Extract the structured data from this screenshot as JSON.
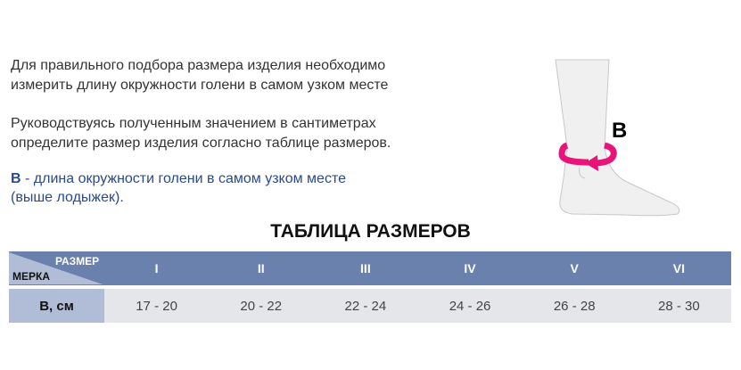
{
  "intro": {
    "line1": "Для правильного подбора размера изделия необходимо",
    "line2": "измерить длину окружности голени в самом узком месте",
    "line3": "Руководствуясь полученным значением в сантиметрах",
    "line4": "определите размер изделия согласно таблице размеров.",
    "b_label": "B",
    "b_desc": " - длина окружности голени в самом узком месте",
    "b_desc2": "(выше лодыжек)."
  },
  "figure": {
    "label": "B",
    "arrow_color": "#e8147a"
  },
  "table": {
    "title": "ТАБЛИЦА РАЗМЕРОВ",
    "corner_top": "РАЗМЕР",
    "corner_bottom": "МЕРКА",
    "sizes": [
      "I",
      "II",
      "III",
      "IV",
      "V",
      "VI"
    ],
    "row_label": "B, см",
    "values": [
      "17 - 20",
      "20 - 22",
      "22 - 24",
      "24 - 26",
      "26 - 28",
      "28 - 30"
    ]
  }
}
